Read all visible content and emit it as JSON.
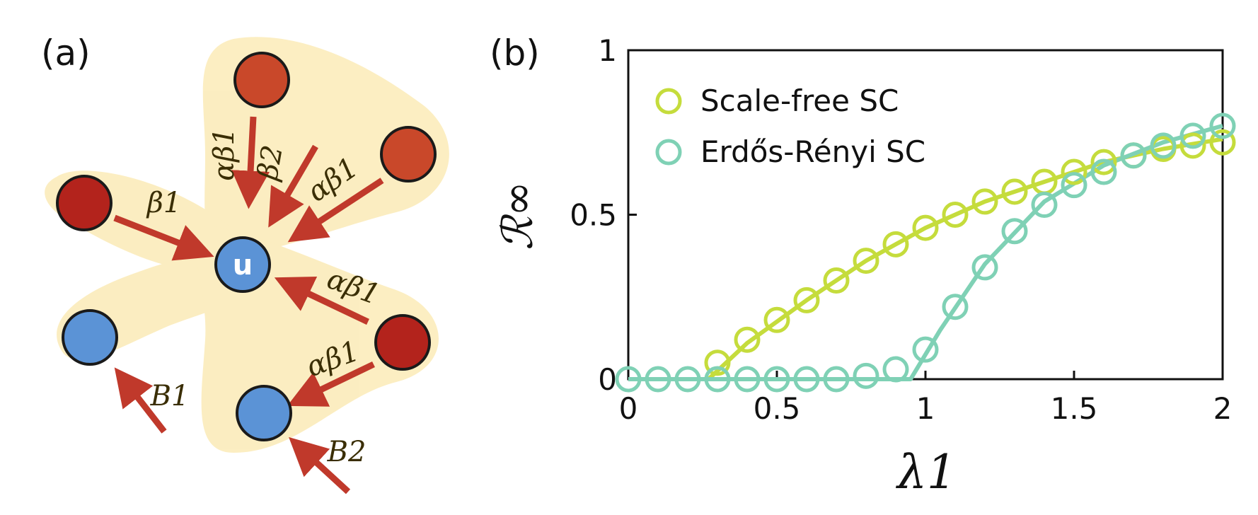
{
  "panel_a": {
    "label": "(a)",
    "center_node": "u",
    "edge_labels": {
      "top_left_vertical": "αβ1",
      "top_middle": "β2",
      "top_right": "αβ1",
      "left": "β1",
      "right_upper": "αβ1",
      "right_lower": "αβ1",
      "bottom_left": "B1",
      "bottom_right": "B2"
    },
    "colors": {
      "hyperedge_fill": "#f8d977",
      "infected_dark": "#b3231c",
      "infected_orange": "#c9482a",
      "susceptible": "#5b93d6",
      "arrow": "#c0392b"
    }
  },
  "panel_b": {
    "label": "(b)"
  },
  "chart_data": {
    "type": "scatter",
    "xlabel": "λ1",
    "ylabel": "ℛ∞",
    "xlim": [
      0,
      2
    ],
    "ylim": [
      0,
      1
    ],
    "x_ticks": [
      "0",
      "0.5",
      "1",
      "1.5",
      "2"
    ],
    "y_ticks": [
      "0",
      "0.5",
      "1"
    ],
    "legend_position": "top-left",
    "series": [
      {
        "name": "Scale-free SC",
        "color": "#c5dc3c",
        "x": [
          0.3,
          0.4,
          0.5,
          0.6,
          0.7,
          0.8,
          0.9,
          1.0,
          1.1,
          1.2,
          1.3,
          1.4,
          1.5,
          1.6,
          1.7,
          1.8,
          1.9,
          2.0
        ],
        "y": [
          0.05,
          0.12,
          0.18,
          0.24,
          0.3,
          0.36,
          0.41,
          0.46,
          0.5,
          0.54,
          0.57,
          0.6,
          0.63,
          0.66,
          0.68,
          0.7,
          0.71,
          0.72
        ],
        "fit_x": [
          0.27,
          0.4,
          0.6,
          0.8,
          1.0,
          1.2,
          1.4,
          1.6,
          1.8,
          2.0
        ],
        "fit_y": [
          0.0,
          0.11,
          0.24,
          0.36,
          0.46,
          0.54,
          0.6,
          0.66,
          0.7,
          0.73
        ]
      },
      {
        "name": "Erdős-Rényi SC",
        "color": "#7fd1b5",
        "x": [
          0.0,
          0.1,
          0.2,
          0.3,
          0.4,
          0.5,
          0.6,
          0.7,
          0.8,
          0.9,
          1.0,
          1.1,
          1.2,
          1.3,
          1.4,
          1.5,
          1.6,
          1.7,
          1.8,
          1.9,
          2.0
        ],
        "y": [
          0.0,
          0.0,
          0.0,
          0.0,
          0.0,
          0.0,
          0.0,
          0.0,
          0.01,
          0.03,
          0.09,
          0.22,
          0.34,
          0.45,
          0.53,
          0.59,
          0.63,
          0.68,
          0.71,
          0.74,
          0.77
        ],
        "fit_x": [
          0.0,
          0.95,
          1.05,
          1.2,
          1.4,
          1.6,
          1.8,
          2.0
        ],
        "fit_y": [
          0.0,
          0.0,
          0.15,
          0.35,
          0.54,
          0.65,
          0.72,
          0.77
        ]
      }
    ]
  }
}
